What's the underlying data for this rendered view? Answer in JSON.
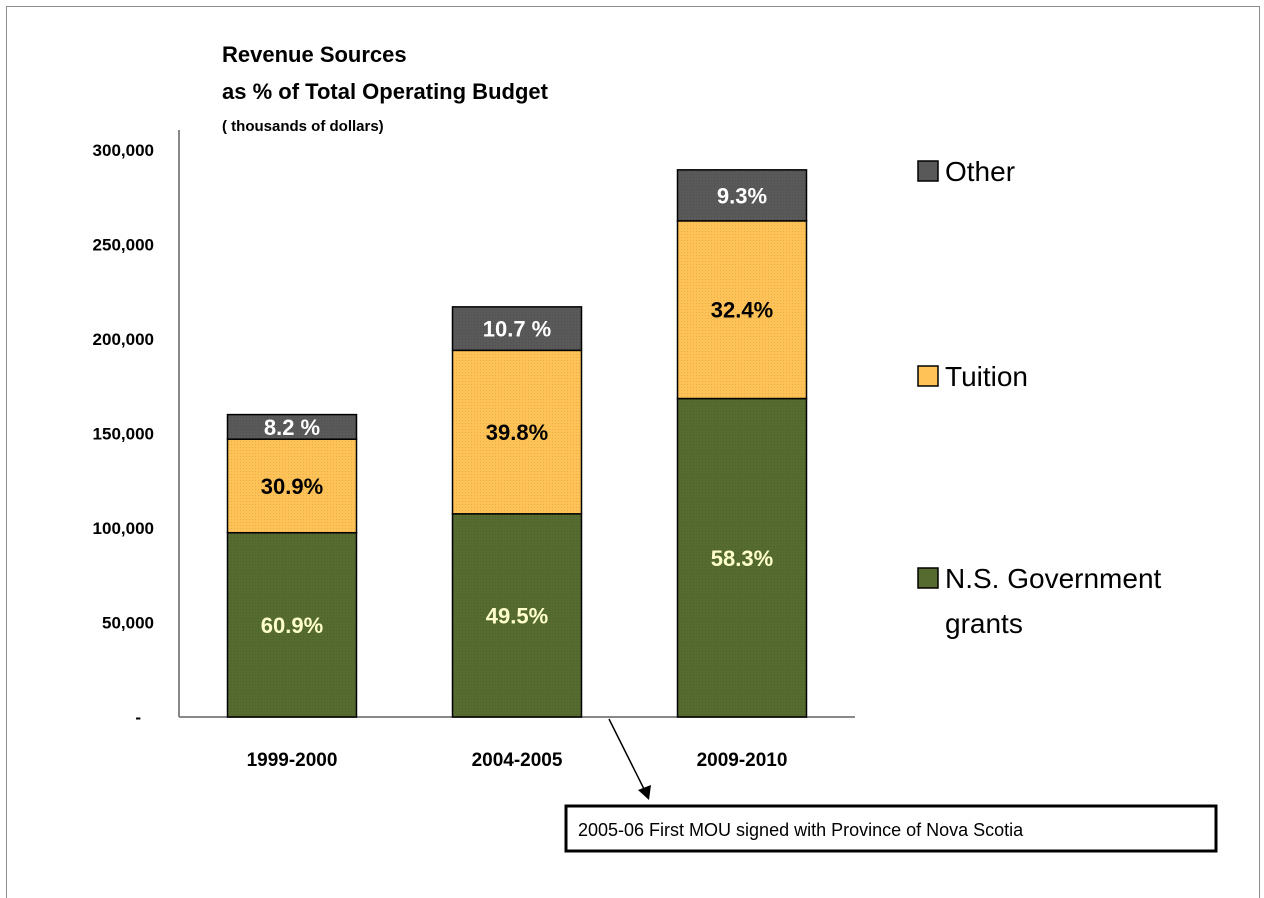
{
  "chart_data": {
    "type": "bar",
    "stacked": true,
    "title": "Revenue  Sources",
    "title_line2": "as % of Total Operating Budget",
    "subtitle": "( thousands of dollars)",
    "categories": [
      "1999-2000",
      "2004-2005",
      "2009-2010"
    ],
    "ylim": [
      0,
      300000
    ],
    "y_ticks": [
      {
        "value": 300000,
        "label": "300,000"
      },
      {
        "value": 250000,
        "label": "250,000"
      },
      {
        "value": 200000,
        "label": "200,000"
      },
      {
        "value": 150000,
        "label": "150,000"
      },
      {
        "value": 100000,
        "label": "100,000"
      },
      {
        "value": 50000,
        "label": "50,000"
      },
      {
        "value": 0,
        "label": "-"
      }
    ],
    "series": [
      {
        "name": "N.S. Government grants",
        "color": "#556b2f",
        "label_color": "#ffffcc",
        "values": [
          97500,
          107500,
          168500
        ],
        "labels": [
          "60.9%",
          "49.5%",
          "58.3%"
        ]
      },
      {
        "name": "Tuition",
        "color": "#ffc257",
        "label_color": "#000000",
        "values": [
          49500,
          86500,
          94000
        ],
        "labels": [
          "30.9%",
          "39.8%",
          "32.4%"
        ]
      },
      {
        "name": "Other",
        "color": "#595959",
        "label_color": "#ffffff",
        "values": [
          13000,
          23000,
          27000
        ],
        "labels": [
          "8.2 %",
          "10.7 %",
          "9.3%"
        ]
      }
    ],
    "legend": {
      "placement": "right",
      "items": [
        {
          "lines": [
            "Other"
          ],
          "color": "#595959"
        },
        {
          "lines": [
            "Tuition"
          ],
          "color": "#ffc257"
        },
        {
          "lines": [
            "N.S. Government",
            "grants"
          ],
          "color": "#556b2f"
        }
      ]
    },
    "annotation": "2005-06 First MOU  signed with Province of Nova Scotia",
    "grid": false
  }
}
